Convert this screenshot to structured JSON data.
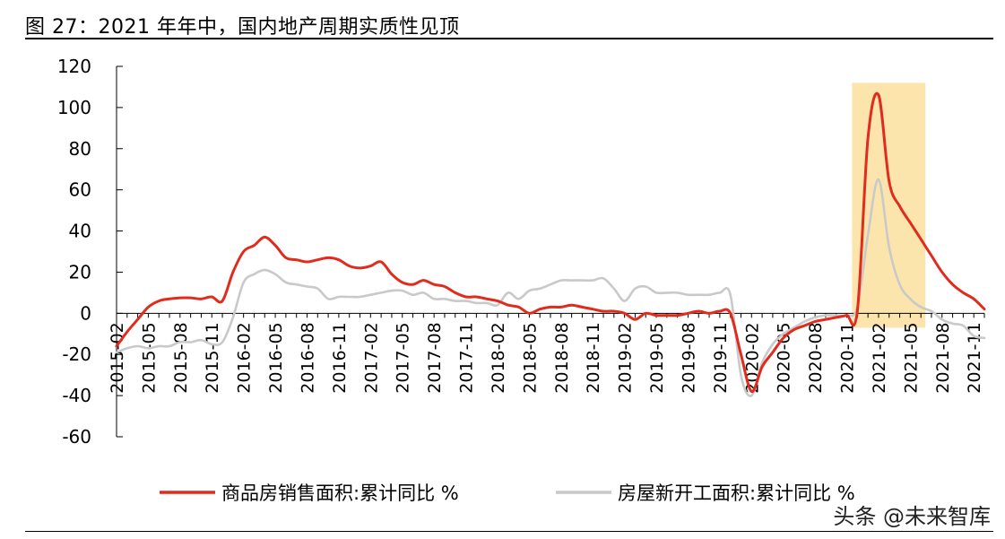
{
  "figure_title": "图 27：2021 年年中，国内地产周期实质性见顶",
  "watermark": "头条 @未来智库",
  "colors": {
    "sales": "#e12b1c",
    "starts": "#c9c9c9",
    "highlight": "#fce5ad",
    "axis": "#000000"
  },
  "chart_data": {
    "type": "line",
    "title": "",
    "xlabel": "",
    "ylabel": "",
    "ylim": [
      -60,
      120
    ],
    "yticks": [
      120,
      100,
      80,
      60,
      40,
      20,
      0,
      -20,
      -40,
      -60
    ],
    "x_months": [
      "2015-02",
      "2015-03",
      "2015-04",
      "2015-05",
      "2015-06",
      "2015-07",
      "2015-08",
      "2015-09",
      "2015-10",
      "2015-11",
      "2015-12",
      "2016-01",
      "2016-02",
      "2016-03",
      "2016-04",
      "2016-05",
      "2016-06",
      "2016-07",
      "2016-08",
      "2016-09",
      "2016-10",
      "2016-11",
      "2016-12",
      "2017-01",
      "2017-02",
      "2017-03",
      "2017-04",
      "2017-05",
      "2017-06",
      "2017-07",
      "2017-08",
      "2017-09",
      "2017-10",
      "2017-11",
      "2017-12",
      "2018-01",
      "2018-02",
      "2018-03",
      "2018-04",
      "2018-05",
      "2018-06",
      "2018-07",
      "2018-08",
      "2018-09",
      "2018-10",
      "2018-11",
      "2018-12",
      "2019-01",
      "2019-02",
      "2019-03",
      "2019-04",
      "2019-05",
      "2019-06",
      "2019-07",
      "2019-08",
      "2019-09",
      "2019-10",
      "2019-11",
      "2019-12",
      "2020-01",
      "2020-02",
      "2020-03",
      "2020-04",
      "2020-05",
      "2020-06",
      "2020-07",
      "2020-08",
      "2020-09",
      "2020-10",
      "2020-11",
      "2020-12",
      "2021-01",
      "2021-02",
      "2021-03",
      "2021-04",
      "2021-05",
      "2021-06",
      "2021-07",
      "2021-08",
      "2021-09",
      "2021-10",
      "2021-11",
      "2021-12"
    ],
    "x_tick_labels": [
      "2015-02",
      "2015-05",
      "2015-08",
      "2015-11",
      "2016-02",
      "2016-05",
      "2016-08",
      "2016-11",
      "2017-02",
      "2017-05",
      "2017-08",
      "2017-11",
      "2018-02",
      "2018-05",
      "2018-08",
      "2018-11",
      "2019-02",
      "2019-05",
      "2019-08",
      "2019-11",
      "2020-02",
      "2020-05",
      "2020-08",
      "2020-11",
      "2021-02",
      "2021-05",
      "2021-08",
      "2021-11"
    ],
    "highlight_range": [
      "2020-12",
      "2021-06"
    ],
    "series": [
      {
        "name": "商品房销售面积:累计同比 %",
        "color": "#e12b1c",
        "values": [
          -16,
          -9,
          -3,
          3,
          6,
          7,
          7.5,
          7.5,
          7,
          8,
          6,
          20,
          30,
          33,
          37,
          33,
          27,
          26,
          25,
          26,
          27,
          26,
          23,
          22,
          23,
          25,
          19,
          15,
          14,
          16,
          14,
          13,
          10,
          8,
          8,
          7,
          6,
          4,
          3,
          0,
          2,
          3,
          3,
          4,
          3,
          2,
          1,
          1,
          0,
          -3,
          0,
          -1,
          -1,
          -1,
          0,
          1,
          0,
          1,
          0,
          -20,
          -38,
          -26,
          -19,
          -12,
          -8,
          -6,
          -4,
          -3,
          -2,
          -1,
          1,
          85,
          106,
          64,
          52,
          44,
          36,
          28,
          20,
          14,
          10,
          7,
          2
        ]
      },
      {
        "name": "房屋新开工面积:累计同比 %",
        "color": "#c9c9c9",
        "values": [
          -19,
          -17,
          -16,
          -17,
          -16,
          -16,
          -14,
          -14,
          -13,
          -15,
          -14,
          -2,
          15,
          19,
          21,
          19,
          15,
          14,
          13,
          12,
          7,
          8,
          8,
          8,
          9,
          10,
          11,
          11,
          9,
          10,
          7,
          7,
          6,
          6,
          5,
          5,
          4,
          10,
          7,
          11,
          12,
          14,
          16,
          16,
          16,
          16,
          17,
          12,
          6,
          12,
          13,
          10,
          10,
          10,
          9,
          9,
          9,
          10,
          9,
          -30,
          -40,
          -24,
          -15,
          -10,
          -7,
          -4,
          -2,
          -1,
          -1,
          -1,
          3,
          38,
          65,
          32,
          14,
          7,
          3,
          1,
          -3,
          -5,
          -6,
          -11,
          -12
        ]
      }
    ],
    "legend": "bottom-center",
    "grid": false
  }
}
